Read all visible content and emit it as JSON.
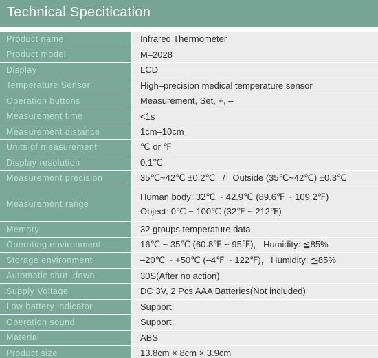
{
  "header": {
    "title": "Technical Specitication"
  },
  "colors": {
    "header_bg": "#76a596",
    "label_bg": "#7aa99a",
    "label_text": "#c2ddd4",
    "value_bg": "#ececec",
    "value_text": "#2f2f2f"
  },
  "specs": [
    {
      "label": "Product name",
      "value": "Infrared Thermometer"
    },
    {
      "label": "Product model",
      "value": "M–2028"
    },
    {
      "label": "Display",
      "value": "LCD"
    },
    {
      "label": "Temperature Sensor",
      "value": "High–precision medical temperature sensor"
    },
    {
      "label": "Operation buttons",
      "value": "Measurement, Set, +, –"
    },
    {
      "label": "Measurement time",
      "value": "<1s"
    },
    {
      "label": "Measurement distance",
      "value": "1cm–10cm"
    },
    {
      "label": "Units of measurement",
      "value": "℃ or ℉"
    },
    {
      "label": "Display resolution",
      "value": "0.1℃"
    },
    {
      "label": "Measurement precision",
      "value": "35℃~42℃ ±0.2℃   /   Outside (35℃~42℃) ±0.3℃"
    },
    {
      "label": "Measurement range",
      "value_lines": [
        "Human body: 32℃ ~ 42.9℃ (89.6℉ ~ 109.2℉)",
        "Object: 0℃ ~ 100℃ (32℉ ~ 212℉)"
      ]
    },
    {
      "label": "Memory",
      "value": "32 groups temperature data"
    },
    {
      "label": "Operating environment",
      "value": "16℃ ~ 35℃ (60.8℉ ~ 95℉),   Humidity: ≦85%"
    },
    {
      "label": "Storage environment",
      "value": "–20℃ ~ +50℃ (–4℉ ~ 122℉),   Humidity: ≦85%"
    },
    {
      "label": "Automatic shut–down",
      "value": "30S(After no action)"
    },
    {
      "label": "Supply Voltage",
      "value": "DC 3V, 2 Pcs AAA Batteries(Not included)"
    },
    {
      "label": "Low battery indicator",
      "value": "Support"
    },
    {
      "label": "Operation sound",
      "value": "Support"
    },
    {
      "label": "Material",
      "value": "ABS"
    },
    {
      "label": "Product size",
      "value": "13.8cm × 8cm × 3.9cm"
    }
  ]
}
